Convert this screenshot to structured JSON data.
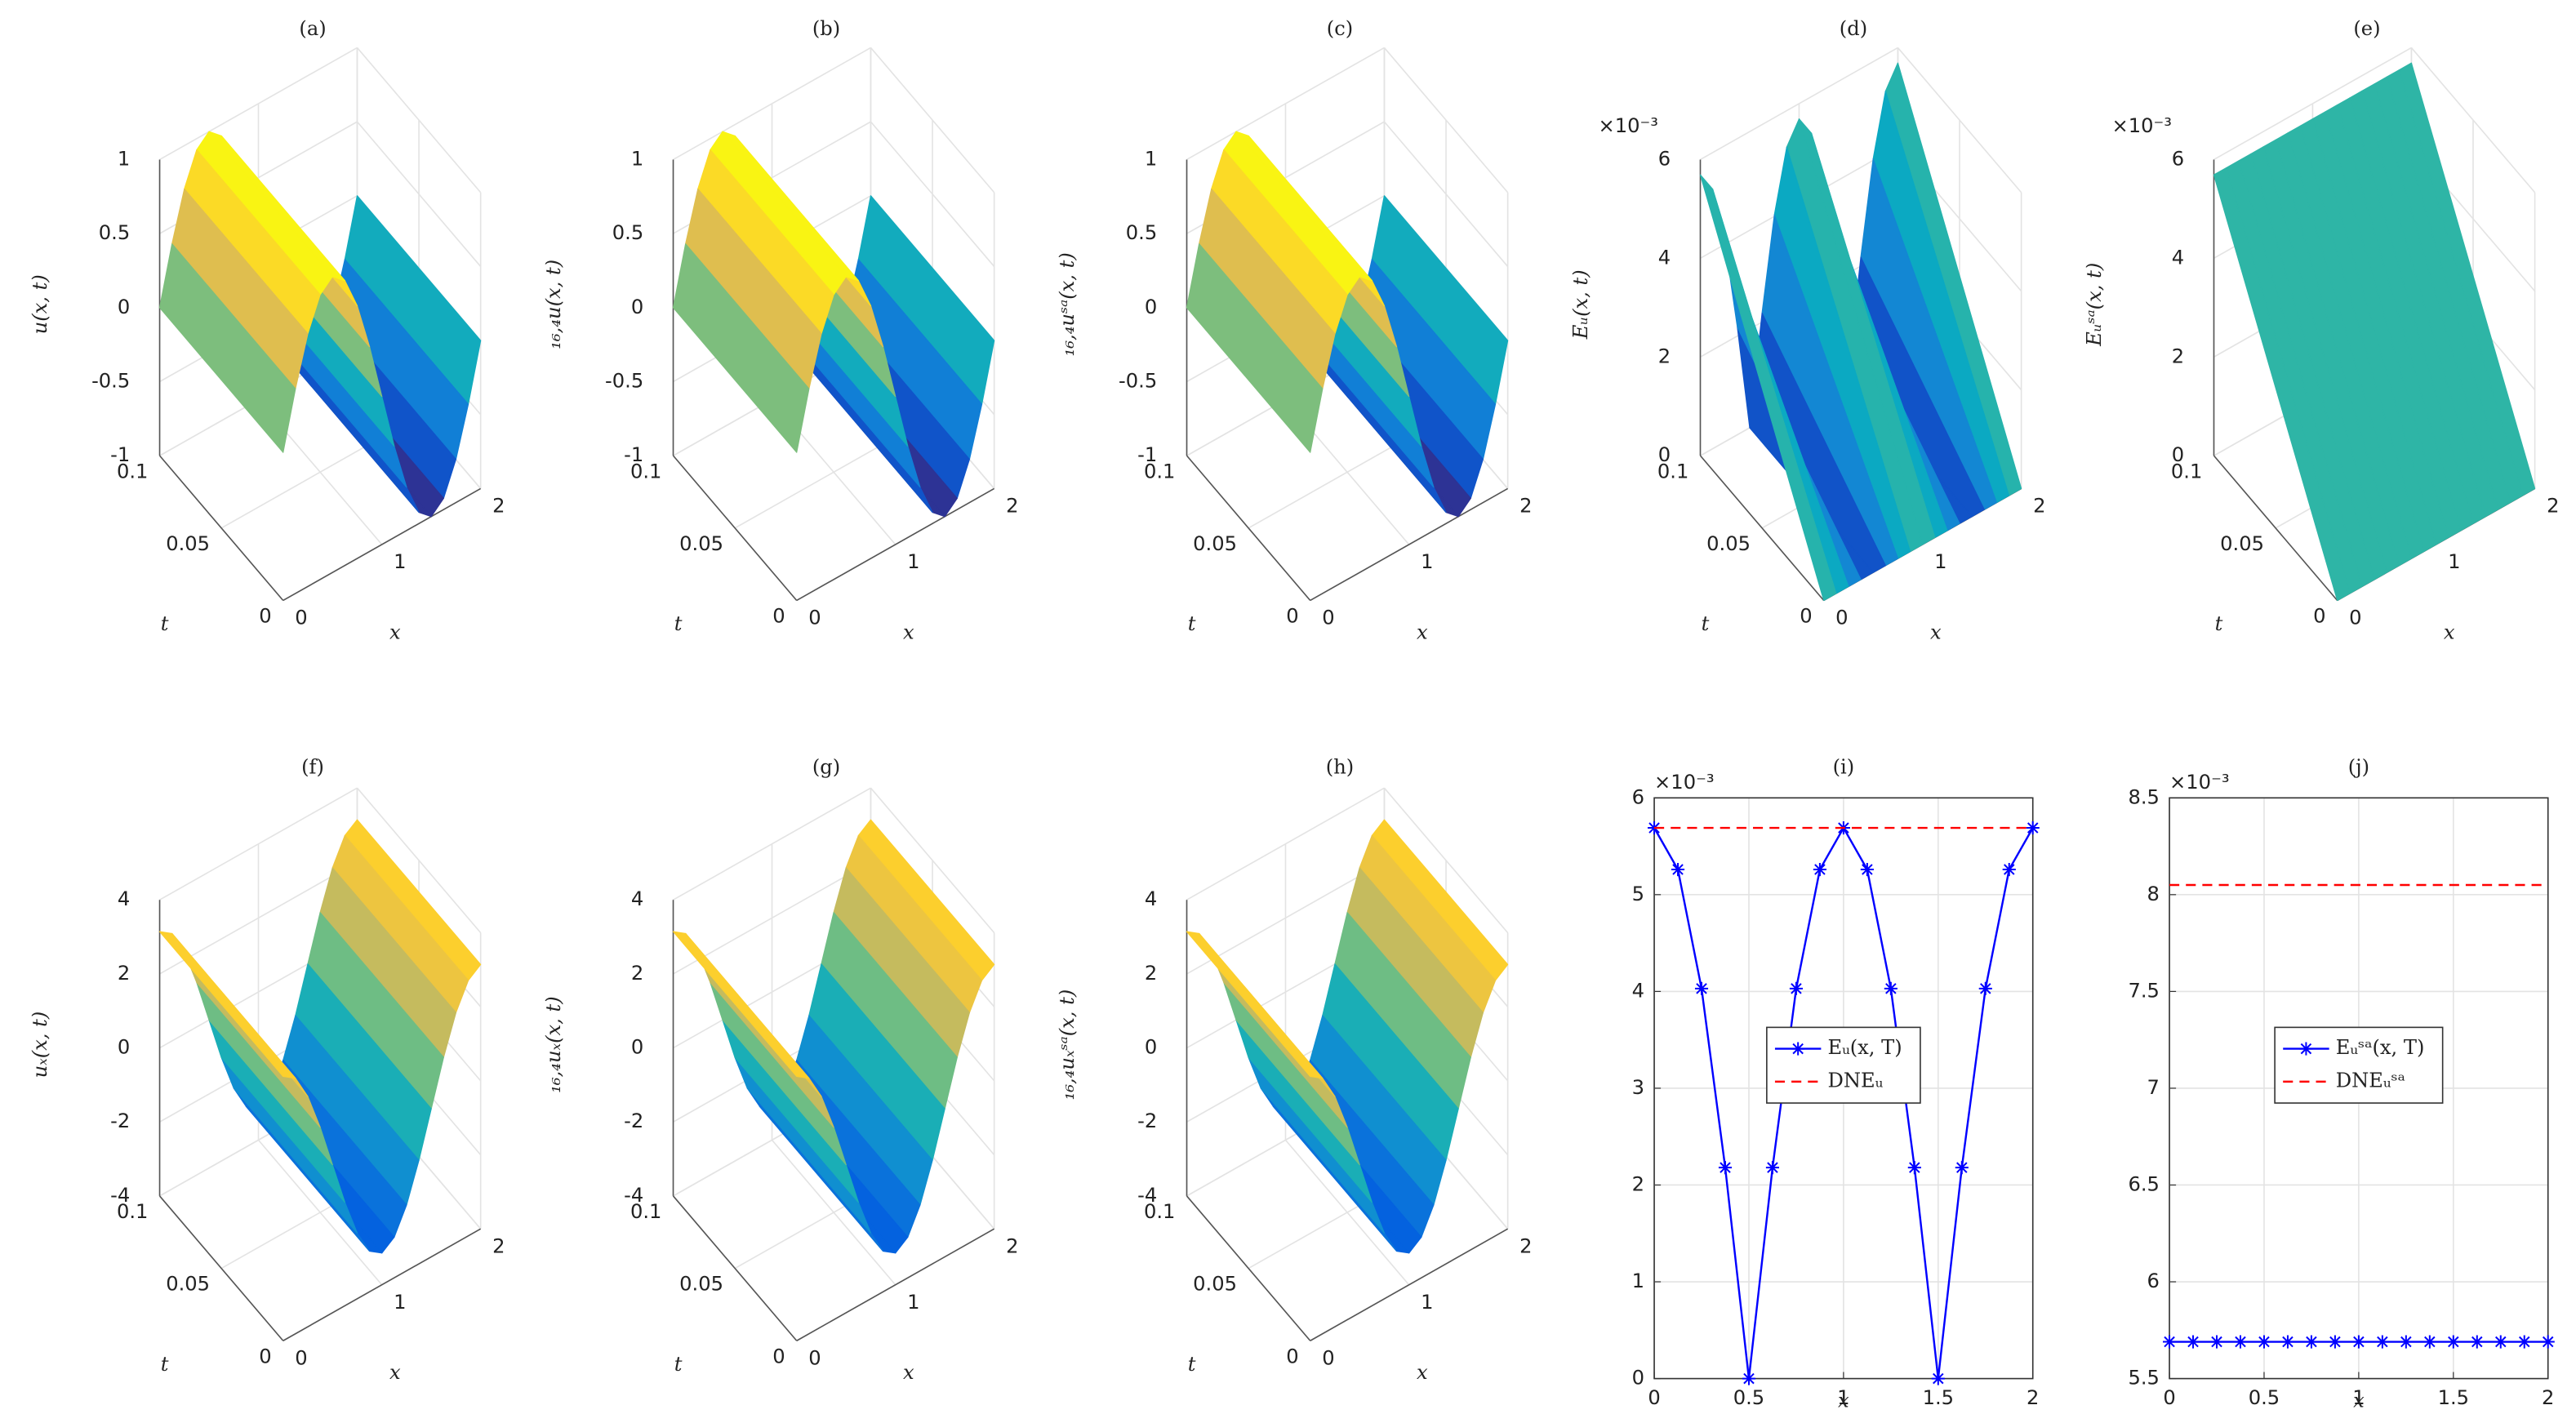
{
  "chart_data": [
    {
      "type": "surface",
      "title": "(a)",
      "zlabel": "u(x, t)",
      "xlabel": "x",
      "ylabel": "t",
      "colormap": "parula",
      "grid": true,
      "x": [
        0,
        0.125,
        0.25,
        0.375,
        0.5,
        0.625,
        0.75,
        0.875,
        1,
        1.125,
        1.25,
        1.375,
        1.5,
        1.625,
        1.75,
        1.875,
        2
      ],
      "y": [
        0,
        0.1
      ],
      "values": [
        [
          0,
          0.383,
          0.707,
          0.924,
          1,
          0.924,
          0.707,
          0.383,
          0,
          -0.383,
          -0.707,
          -0.924,
          -1,
          -0.924,
          -0.707,
          -0.383,
          0
        ],
        [
          0,
          0.383,
          0.707,
          0.924,
          1,
          0.924,
          0.707,
          0.383,
          0,
          -0.383,
          -0.707,
          -0.924,
          -1,
          -0.924,
          -0.707,
          -0.383,
          0
        ]
      ],
      "xlim": [
        0,
        2
      ],
      "xticks": [
        0,
        1,
        2
      ],
      "ylim": [
        0,
        0.1
      ],
      "yticks": [
        0,
        0.05,
        0.1
      ],
      "zlim": [
        -1,
        1
      ],
      "zticks": [
        -1,
        -0.5,
        0,
        0.5,
        1
      ]
    },
    {
      "type": "surface",
      "title": "(b)",
      "zlabel": "₁₆,₄u(x, t)",
      "xlabel": "x",
      "ylabel": "t",
      "colormap": "parula",
      "grid": true,
      "x": [
        0,
        0.125,
        0.25,
        0.375,
        0.5,
        0.625,
        0.75,
        0.875,
        1,
        1.125,
        1.25,
        1.375,
        1.5,
        1.625,
        1.75,
        1.875,
        2
      ],
      "y": [
        0,
        0.1
      ],
      "values": [
        [
          0,
          0.383,
          0.707,
          0.924,
          1,
          0.924,
          0.707,
          0.383,
          0,
          -0.383,
          -0.707,
          -0.924,
          -1,
          -0.924,
          -0.707,
          -0.383,
          0
        ],
        [
          0,
          0.383,
          0.707,
          0.924,
          1,
          0.924,
          0.707,
          0.383,
          0,
          -0.383,
          -0.707,
          -0.924,
          -1,
          -0.924,
          -0.707,
          -0.383,
          0
        ]
      ],
      "xlim": [
        0,
        2
      ],
      "xticks": [
        0,
        1,
        2
      ],
      "ylim": [
        0,
        0.1
      ],
      "yticks": [
        0,
        0.05,
        0.1
      ],
      "zlim": [
        -1,
        1
      ],
      "zticks": [
        -1,
        -0.5,
        0,
        0.5,
        1
      ]
    },
    {
      "type": "surface",
      "title": "(c)",
      "zlabel": "₁₆,₄uˢᵃ(x, t)",
      "xlabel": "x",
      "ylabel": "t",
      "colormap": "parula",
      "grid": true,
      "x": [
        0,
        0.125,
        0.25,
        0.375,
        0.5,
        0.625,
        0.75,
        0.875,
        1,
        1.125,
        1.25,
        1.375,
        1.5,
        1.625,
        1.75,
        1.875,
        2
      ],
      "y": [
        0,
        0.1
      ],
      "values": [
        [
          0,
          0.383,
          0.707,
          0.924,
          1,
          0.924,
          0.707,
          0.383,
          0,
          -0.383,
          -0.707,
          -0.924,
          -1,
          -0.924,
          -0.707,
          -0.383,
          0
        ],
        [
          0,
          0.383,
          0.707,
          0.924,
          1,
          0.924,
          0.707,
          0.383,
          0,
          -0.383,
          -0.707,
          -0.924,
          -1,
          -0.924,
          -0.707,
          -0.383,
          0
        ]
      ],
      "xlim": [
        0,
        2
      ],
      "xticks": [
        0,
        1,
        2
      ],
      "ylim": [
        0,
        0.1
      ],
      "yticks": [
        0,
        0.05,
        0.1
      ],
      "zlim": [
        -1,
        1
      ],
      "zticks": [
        -1,
        -0.5,
        0,
        0.5,
        1
      ]
    },
    {
      "type": "surface",
      "title": "(d)",
      "zlabel": "Eᵤ(x, t)",
      "xlabel": "x",
      "ylabel": "t",
      "colormap": "parula",
      "grid": true,
      "z_multiplier": "×10⁻³",
      "x": [
        0,
        0.125,
        0.25,
        0.375,
        0.5,
        0.625,
        0.75,
        0.875,
        1,
        1.125,
        1.25,
        1.375,
        1.5,
        1.625,
        1.75,
        1.875,
        2
      ],
      "y": [
        0,
        0.1
      ],
      "values": [
        [
          0,
          0,
          0,
          0,
          0,
          0,
          0,
          0,
          0,
          0,
          0,
          0,
          0,
          0,
          0,
          0,
          0
        ],
        [
          5.69,
          5.26,
          4.03,
          2.18,
          0,
          2.18,
          4.03,
          5.26,
          5.69,
          5.26,
          4.03,
          2.18,
          0,
          2.18,
          4.03,
          5.26,
          5.69
        ]
      ],
      "xlim": [
        0,
        2
      ],
      "xticks": [
        0,
        1,
        2
      ],
      "ylim": [
        0,
        0.1
      ],
      "yticks": [
        0,
        0.05,
        0.1
      ],
      "zlim": [
        0,
        6
      ],
      "zticks": [
        0,
        2,
        4,
        6
      ]
    },
    {
      "type": "surface",
      "title": "(e)",
      "zlabel": "Eᵤˢᵃ(x, t)",
      "xlabel": "x",
      "ylabel": "t",
      "colormap": "parula",
      "grid": true,
      "z_multiplier": "×10⁻³",
      "x": [
        0,
        0.125,
        0.25,
        0.375,
        0.5,
        0.625,
        0.75,
        0.875,
        1,
        1.125,
        1.25,
        1.375,
        1.5,
        1.625,
        1.75,
        1.875,
        2
      ],
      "y": [
        0,
        0.1
      ],
      "values": [
        [
          0,
          0,
          0,
          0,
          0,
          0,
          0,
          0,
          0,
          0,
          0,
          0,
          0,
          0,
          0,
          0,
          0
        ],
        [
          5.69,
          5.69,
          5.69,
          5.69,
          5.69,
          5.69,
          5.69,
          5.69,
          5.69,
          5.69,
          5.69,
          5.69,
          5.69,
          5.69,
          5.69,
          5.69,
          5.69
        ]
      ],
      "xlim": [
        0,
        2
      ],
      "xticks": [
        0,
        1,
        2
      ],
      "ylim": [
        0,
        0.1
      ],
      "yticks": [
        0,
        0.05,
        0.1
      ],
      "zlim": [
        0,
        6
      ],
      "zticks": [
        0,
        2,
        4,
        6
      ]
    },
    {
      "type": "surface",
      "title": "(f)",
      "zlabel": "uₓ(x, t)",
      "xlabel": "x",
      "ylabel": "t",
      "colormap": "parula",
      "grid": true,
      "x": [
        0,
        0.125,
        0.25,
        0.375,
        0.5,
        0.625,
        0.75,
        0.875,
        1,
        1.125,
        1.25,
        1.375,
        1.5,
        1.625,
        1.75,
        1.875,
        2
      ],
      "y": [
        0,
        0.1
      ],
      "values": [
        [
          3.142,
          2.902,
          2.221,
          1.202,
          0,
          -1.202,
          -2.221,
          -2.902,
          -3.142,
          -2.902,
          -2.221,
          -1.202,
          0,
          1.202,
          2.221,
          2.902,
          3.142
        ],
        [
          3.142,
          2.902,
          2.221,
          1.202,
          0,
          -1.202,
          -2.221,
          -2.902,
          -3.142,
          -2.902,
          -2.221,
          -1.202,
          0,
          1.202,
          2.221,
          2.902,
          3.142
        ]
      ],
      "xlim": [
        0,
        2
      ],
      "xticks": [
        0,
        1,
        2
      ],
      "ylim": [
        0,
        0.1
      ],
      "yticks": [
        0,
        0.05,
        0.1
      ],
      "zlim": [
        -4,
        4
      ],
      "zticks": [
        -4,
        -2,
        0,
        2,
        4
      ]
    },
    {
      "type": "surface",
      "title": "(g)",
      "zlabel": "₁₆,₄uₓ(x, t)",
      "xlabel": "x",
      "ylabel": "t",
      "colormap": "parula",
      "grid": true,
      "x": [
        0,
        0.125,
        0.25,
        0.375,
        0.5,
        0.625,
        0.75,
        0.875,
        1,
        1.125,
        1.25,
        1.375,
        1.5,
        1.625,
        1.75,
        1.875,
        2
      ],
      "y": [
        0,
        0.1
      ],
      "values": [
        [
          3.142,
          2.902,
          2.221,
          1.202,
          0,
          -1.202,
          -2.221,
          -2.902,
          -3.142,
          -2.902,
          -2.221,
          -1.202,
          0,
          1.202,
          2.221,
          2.902,
          3.142
        ],
        [
          3.142,
          2.902,
          2.221,
          1.202,
          0,
          -1.202,
          -2.221,
          -2.902,
          -3.142,
          -2.902,
          -2.221,
          -1.202,
          0,
          1.202,
          2.221,
          2.902,
          3.142
        ]
      ],
      "xlim": [
        0,
        2
      ],
      "xticks": [
        0,
        1,
        2
      ],
      "ylim": [
        0,
        0.1
      ],
      "yticks": [
        0,
        0.05,
        0.1
      ],
      "zlim": [
        -4,
        4
      ],
      "zticks": [
        -4,
        -2,
        0,
        2,
        4
      ]
    },
    {
      "type": "surface",
      "title": "(h)",
      "zlabel": "₁₆,₄uₓˢᵃ(x, t)",
      "xlabel": "x",
      "ylabel": "t",
      "colormap": "parula",
      "grid": true,
      "x": [
        0,
        0.125,
        0.25,
        0.375,
        0.5,
        0.625,
        0.75,
        0.875,
        1,
        1.125,
        1.25,
        1.375,
        1.5,
        1.625,
        1.75,
        1.875,
        2
      ],
      "y": [
        0,
        0.1
      ],
      "values": [
        [
          3.142,
          2.902,
          2.221,
          1.202,
          0,
          -1.202,
          -2.221,
          -2.902,
          -3.142,
          -2.902,
          -2.221,
          -1.202,
          0,
          1.202,
          2.221,
          2.902,
          3.142
        ],
        [
          3.142,
          2.902,
          2.221,
          1.202,
          0,
          -1.202,
          -2.221,
          -2.902,
          -3.142,
          -2.902,
          -2.221,
          -1.202,
          0,
          1.202,
          2.221,
          2.902,
          3.142
        ]
      ],
      "xlim": [
        0,
        2
      ],
      "xticks": [
        0,
        1,
        2
      ],
      "ylim": [
        0,
        0.1
      ],
      "yticks": [
        0,
        0.05,
        0.1
      ],
      "zlim": [
        -4,
        4
      ],
      "zticks": [
        -4,
        -2,
        0,
        2,
        4
      ]
    },
    {
      "type": "line",
      "title": "(i)",
      "xlabel": "x",
      "y_multiplier": "×10⁻³",
      "grid": true,
      "legend": "center",
      "x": [
        0,
        0.125,
        0.25,
        0.375,
        0.5,
        0.625,
        0.75,
        0.875,
        1,
        1.125,
        1.25,
        1.375,
        1.5,
        1.625,
        1.75,
        1.875,
        2
      ],
      "series": [
        {
          "name": "Eᵤ(x, T)",
          "color": "#0000ff",
          "marker": "*",
          "linestyle": "-",
          "values": [
            5.69,
            5.26,
            4.03,
            2.18,
            0,
            2.18,
            4.03,
            5.26,
            5.69,
            5.26,
            4.03,
            2.18,
            0,
            2.18,
            4.03,
            5.26,
            5.69
          ]
        },
        {
          "name": "DNEᵤ",
          "color": "#ff0000",
          "marker": "none",
          "linestyle": "--",
          "values": [
            5.69,
            5.69,
            5.69,
            5.69,
            5.69,
            5.69,
            5.69,
            5.69,
            5.69,
            5.69,
            5.69,
            5.69,
            5.69,
            5.69,
            5.69,
            5.69,
            5.69
          ]
        }
      ],
      "xlim": [
        0,
        2
      ],
      "xticks": [
        0,
        0.5,
        1,
        1.5,
        2
      ],
      "ylim": [
        0,
        6
      ],
      "yticks": [
        0,
        1,
        2,
        3,
        4,
        5,
        6
      ]
    },
    {
      "type": "line",
      "title": "(j)",
      "xlabel": "x",
      "y_multiplier": "×10⁻³",
      "grid": true,
      "legend": "center",
      "x": [
        0,
        0.125,
        0.25,
        0.375,
        0.5,
        0.625,
        0.75,
        0.875,
        1,
        1.125,
        1.25,
        1.375,
        1.5,
        1.625,
        1.75,
        1.875,
        2
      ],
      "series": [
        {
          "name": "Eᵤˢᵃ(x, T)",
          "color": "#0000ff",
          "marker": "*",
          "linestyle": "-",
          "values": [
            5.69,
            5.69,
            5.69,
            5.69,
            5.69,
            5.69,
            5.69,
            5.69,
            5.69,
            5.69,
            5.69,
            5.69,
            5.69,
            5.69,
            5.69,
            5.69,
            5.69
          ]
        },
        {
          "name": "DNEᵤˢᵃ",
          "color": "#ff0000",
          "marker": "none",
          "linestyle": "--",
          "values": [
            8.05,
            8.05,
            8.05,
            8.05,
            8.05,
            8.05,
            8.05,
            8.05,
            8.05,
            8.05,
            8.05,
            8.05,
            8.05,
            8.05,
            8.05,
            8.05,
            8.05
          ]
        }
      ],
      "xlim": [
        0,
        2
      ],
      "xticks": [
        0,
        0.5,
        1,
        1.5,
        2
      ],
      "ylim": [
        5.5,
        8.5
      ],
      "yticks": [
        5.5,
        6,
        6.5,
        7,
        7.5,
        8,
        8.5
      ]
    }
  ]
}
